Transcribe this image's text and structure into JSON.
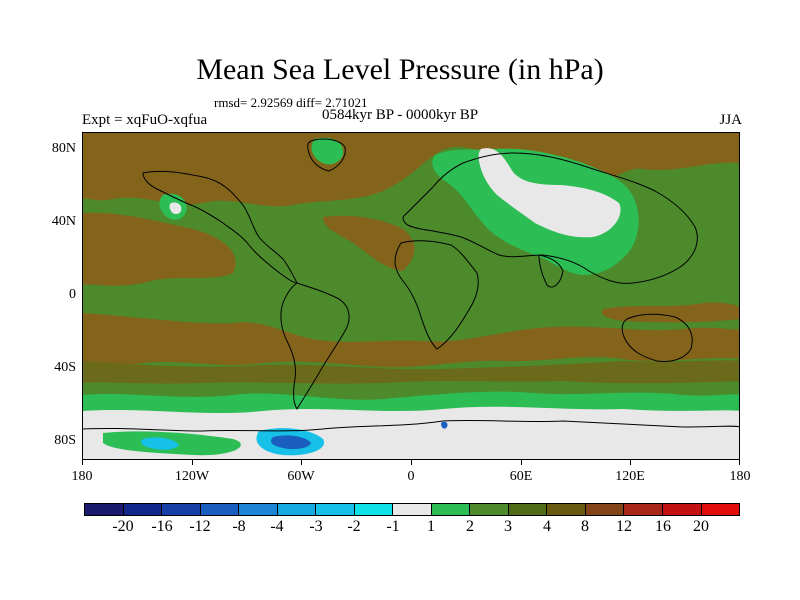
{
  "title": "Mean Sea Level Pressure (in hPa)",
  "stats": "rmsd= 2.92569 diff= 2.71021",
  "expt": "Expt = xqFuO-xqfua",
  "period": "0584kyr BP - 0000kyr BP",
  "season": "JJA",
  "map": {
    "y_labels": [
      "80N",
      "40N",
      "0",
      "40S",
      "80S"
    ],
    "x_labels": [
      "180",
      "120W",
      "60W",
      "0",
      "60E",
      "120E",
      "180"
    ],
    "colors": {
      "base_green": "#4c8a2c",
      "light_green": "#2cbd55",
      "brown": "#84641a",
      "dark_brown": "#6e4a14",
      "olive": "#6a6a1a",
      "near_zero": "#e8e8e8",
      "cyan": "#16c0e6",
      "blue": "#1a5fbf",
      "coast": "#000000"
    }
  },
  "colorbar": {
    "labels": [
      "-20",
      "-16",
      "-12",
      "-8",
      "-4",
      "-3",
      "-2",
      "-1",
      "1",
      "2",
      "3",
      "4",
      "8",
      "12",
      "16",
      "20"
    ],
    "colors": [
      "#1a1a6e",
      "#12268c",
      "#1640a8",
      "#1a5fbf",
      "#1e84d6",
      "#16a8e0",
      "#16c0e6",
      "#10e0e8",
      "#e8e8e8",
      "#2cbd55",
      "#4c8a2c",
      "#4f6b18",
      "#6a5a10",
      "#84441a",
      "#a8261a",
      "#c41212",
      "#e00c0c"
    ]
  }
}
